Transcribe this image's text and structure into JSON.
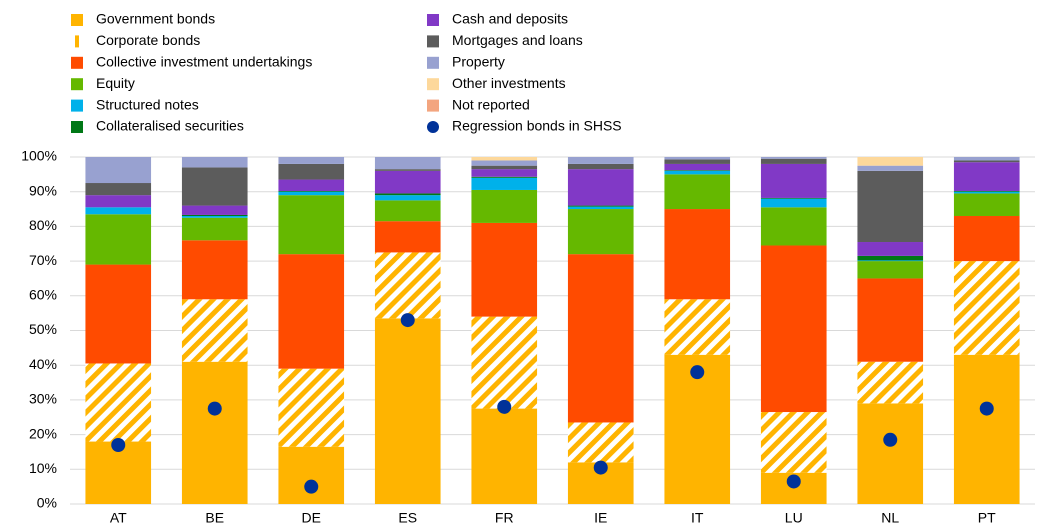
{
  "chart_data": {
    "type": "stacked_bar",
    "categories": [
      "AT",
      "BE",
      "DE",
      "ES",
      "FR",
      "IE",
      "IT",
      "LU",
      "NL",
      "PT"
    ],
    "series": [
      {
        "name": "Government bonds",
        "color": "#ffb400",
        "values": [
          18,
          41,
          16.5,
          53.5,
          27.5,
          12,
          43,
          9,
          29,
          43
        ]
      },
      {
        "name": "Corporate bonds",
        "color": "#ffb400",
        "hatched": true,
        "values": [
          22.5,
          18,
          22.5,
          19,
          26.5,
          11.5,
          16,
          17.5,
          12,
          27
        ]
      },
      {
        "name": "Collective investment undertakings",
        "color": "#ff4b00",
        "values": [
          28.5,
          17,
          33,
          9,
          27,
          48.5,
          26,
          48,
          24,
          13
        ]
      },
      {
        "name": "Equity",
        "color": "#65b800",
        "values": [
          14.5,
          6.5,
          17,
          6,
          9.5,
          13,
          10,
          11,
          5,
          6.5
        ]
      },
      {
        "name": "Structured notes",
        "color": "#00b1ea",
        "values": [
          2,
          0.5,
          1,
          1.5,
          3.5,
          0.7,
          1,
          2.5,
          0.2,
          0.5
        ]
      },
      {
        "name": "Collateralised securities",
        "color": "#007816",
        "values": [
          0,
          0.3,
          0.2,
          0.5,
          0.3,
          0.3,
          0.2,
          0.2,
          1.3,
          0.2
        ]
      },
      {
        "name": "Cash and deposits",
        "color": "#8139c6",
        "values": [
          3.5,
          2.7,
          3.3,
          6.5,
          2.2,
          10.5,
          1.8,
          9.8,
          4,
          8.3
        ]
      },
      {
        "name": "Mortgages and loans",
        "color": "#5c5c5c",
        "values": [
          3.5,
          11,
          4.5,
          0.5,
          1,
          1.5,
          1.3,
          1.5,
          20.5,
          0.5
        ]
      },
      {
        "name": "Property",
        "color": "#98a1d0",
        "values": [
          7.5,
          3,
          2,
          3.5,
          1.5,
          2,
          0.7,
          0.5,
          1.5,
          1
        ]
      },
      {
        "name": "Other investments",
        "color": "#fdd89b",
        "values": [
          0,
          0,
          0,
          0,
          1,
          0,
          0,
          0,
          2.5,
          0
        ]
      },
      {
        "name": "Not reported",
        "color": "#f3a57f",
        "values": [
          0,
          0,
          0,
          0,
          0,
          0,
          0,
          0,
          0,
          0
        ]
      }
    ],
    "points": {
      "name": "Regression bonds in SHSS",
      "color": "#003299",
      "values": [
        17,
        27.5,
        5,
        53,
        28,
        10.5,
        38,
        6.5,
        18.5,
        27.5
      ]
    },
    "ylim": [
      0,
      100
    ],
    "yticks": [
      {
        "value": 0,
        "label": "0%"
      },
      {
        "value": 10,
        "label": "10%"
      },
      {
        "value": 20,
        "label": "20%"
      },
      {
        "value": 30,
        "label": "30%"
      },
      {
        "value": 40,
        "label": "40%"
      },
      {
        "value": 50,
        "label": "50%"
      },
      {
        "value": 60,
        "label": "60%"
      },
      {
        "value": 70,
        "label": "70%"
      },
      {
        "value": 80,
        "label": "80%"
      },
      {
        "value": 90,
        "label": "90%"
      },
      {
        "value": 100,
        "label": "100%"
      }
    ],
    "grid": true
  }
}
